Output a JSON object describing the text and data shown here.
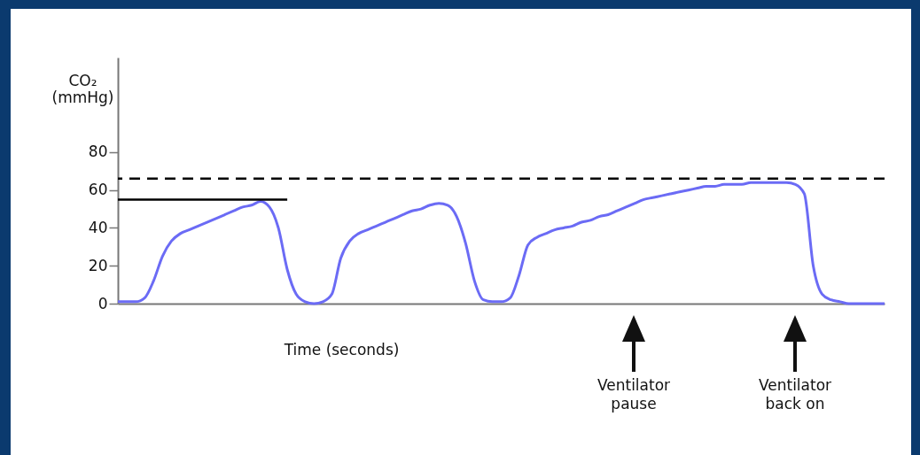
{
  "chart_data": {
    "type": "line",
    "xlabel": "Time (seconds)",
    "ylabel": "CO₂ (mmHg)",
    "categories": [
      null,
      null,
      null,
      null,
      null,
      null,
      null,
      null,
      null,
      null,
      null,
      null,
      null,
      null,
      null,
      null,
      null,
      null,
      null,
      null,
      null,
      null,
      null,
      null,
      null,
      null,
      null,
      null,
      null,
      null,
      null,
      null,
      null,
      null,
      null,
      null,
      null,
      null,
      null,
      null,
      null,
      null,
      null,
      null,
      null,
      null,
      null,
      null,
      null,
      null,
      null,
      null,
      null,
      null,
      null,
      null,
      null,
      null,
      null,
      null,
      null,
      null,
      null,
      null,
      null,
      null,
      null,
      null,
      null,
      null,
      null,
      null,
      null,
      null,
      null,
      null,
      null,
      null,
      null,
      null,
      null,
      null,
      null,
      null,
      null,
      null,
      null
    ],
    "series": [
      {
        "color": "#6b6bf5",
        "values": [
          1,
          1,
          1,
          3,
          12,
          25,
          33,
          37,
          39,
          41,
          43,
          45,
          47,
          49,
          51,
          52,
          54,
          51,
          40,
          18,
          5,
          1,
          0,
          1,
          5,
          24,
          33,
          37,
          39,
          41,
          43,
          45,
          47,
          49,
          50,
          52,
          53,
          52,
          46,
          32,
          12,
          2,
          1,
          1,
          3,
          15,
          31,
          35,
          37,
          39,
          40,
          41,
          43,
          44,
          46,
          47,
          49,
          51,
          53,
          55,
          56,
          57,
          58,
          59,
          60,
          61,
          62,
          62,
          63,
          63,
          63,
          64,
          64,
          64,
          64,
          64,
          63,
          58,
          20,
          5,
          2,
          1,
          0,
          0,
          0,
          0,
          0
        ]
      },
      {
        "type": "line",
        "color": "#000000",
        "values": [
          55,
          55,
          55,
          55,
          55,
          55,
          55,
          55,
          55,
          55,
          55,
          55,
          55,
          55,
          55,
          55,
          55,
          55,
          55,
          55,
          null,
          null,
          null,
          null,
          null,
          null,
          null,
          null,
          null,
          null,
          null,
          null,
          null,
          null,
          null,
          null,
          null,
          null,
          null,
          null,
          null,
          null,
          null,
          null,
          null,
          null,
          null,
          null,
          null,
          null,
          null,
          null,
          null,
          null,
          null,
          null,
          null,
          null,
          null,
          null,
          null,
          null,
          null,
          null,
          null,
          null,
          null,
          null,
          null,
          null,
          null,
          null,
          null,
          null,
          null,
          null,
          null,
          null,
          null,
          null,
          null,
          null,
          null,
          null,
          null,
          null,
          null
        ]
      }
    ],
    "ylim": [
      0,
      130
    ],
    "yticks": [
      0,
      20,
      40,
      60,
      80
    ],
    "ref_lines": [
      {
        "axis": "y",
        "value": 66,
        "color": "#000000",
        "line_style": "dashed"
      }
    ],
    "annotations": [
      "Ventilator pause",
      "Ventilator back on"
    ],
    "tick_labels": "y",
    "grid": false
  }
}
